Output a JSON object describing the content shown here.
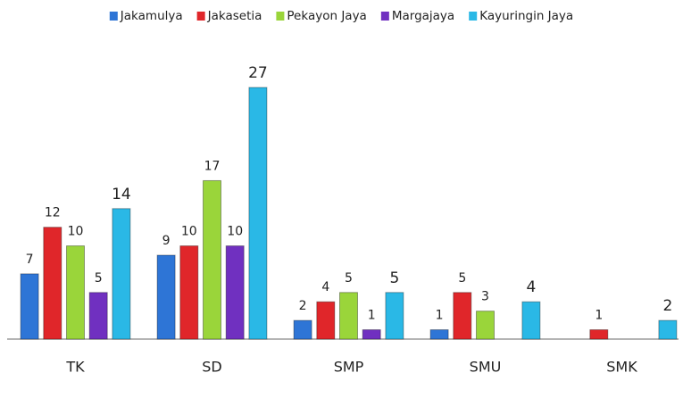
{
  "chart_data": {
    "type": "bar",
    "categories": [
      "TK",
      "SD",
      "SMP",
      "SMU",
      "SMK"
    ],
    "series": [
      {
        "name": "Jakamulya",
        "color": "#2e75d6",
        "values": [
          7,
          9,
          2,
          1,
          null
        ]
      },
      {
        "name": "Jakasetia",
        "color": "#e0262a",
        "values": [
          12,
          10,
          4,
          5,
          1
        ]
      },
      {
        "name": "Pekayon Jaya",
        "color": "#9ad53a",
        "values": [
          10,
          17,
          5,
          3,
          null
        ]
      },
      {
        "name": "Margajaya",
        "color": "#7030c0",
        "values": [
          5,
          10,
          1,
          null,
          null
        ]
      },
      {
        "name": "Kayuringin Jaya",
        "color": "#2ab8e6",
        "values": [
          14,
          27,
          5,
          4,
          2
        ]
      }
    ],
    "legend": "top"
  }
}
